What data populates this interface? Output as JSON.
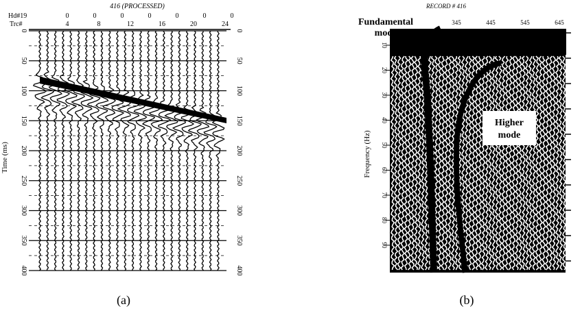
{
  "panel_a": {
    "title": "416 (PROCESSED)",
    "hdr_label": "Hd#19",
    "trc_label": "Trc#",
    "hdr_values": [
      "0",
      "0",
      "0",
      "0",
      "0",
      "0",
      "0"
    ],
    "trc_values": [
      "4",
      "8",
      "12",
      "16",
      "20",
      "24"
    ],
    "ylabel": "Time (ms)",
    "left_ticks": [
      "0",
      "50",
      "100",
      "150",
      "200",
      "250",
      "300",
      "350",
      "400"
    ],
    "right_ticks": [
      "0",
      "50",
      "100",
      "150",
      "200",
      "250",
      "300",
      "350",
      "400"
    ],
    "caption": "(a)"
  },
  "panel_b": {
    "title": "RECORD # 416",
    "top_ticks": [
      "345",
      "445",
      "545",
      "645"
    ],
    "ylabel": "Frequency (Hz)",
    "left_ticks": [
      "10",
      "20",
      "30",
      "40",
      "50",
      "60",
      "70",
      "80",
      "90"
    ],
    "label_fundamental_1": "Fundamental",
    "label_fundamental_2": "mode",
    "label_higher_1": "Higher",
    "label_higher_2": "mode",
    "caption": "(b)"
  }
}
